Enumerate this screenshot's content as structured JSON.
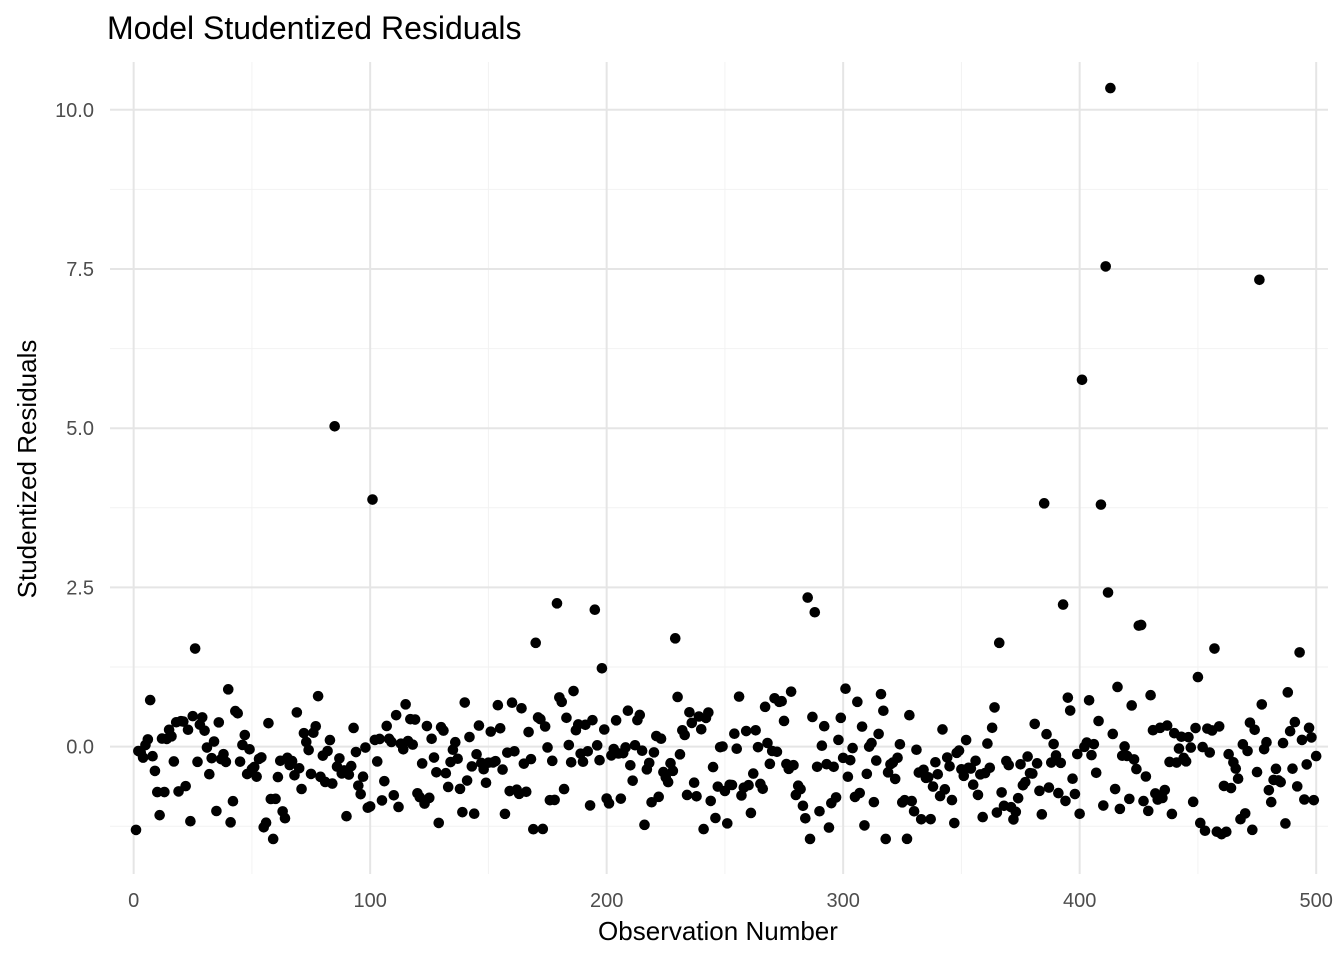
{
  "chart_data": {
    "type": "scatter",
    "title": "Model Studentized Residuals",
    "xlabel": "Observation Number",
    "ylabel": "Studentized Residuals",
    "xlim": [
      -10,
      505
    ],
    "ylim": [
      -2.0,
      10.75
    ],
    "x_ticks": [
      0,
      100,
      200,
      300,
      400,
      500
    ],
    "x_tick_labels": [
      "0",
      "100",
      "200",
      "300",
      "400",
      "500"
    ],
    "y_ticks": [
      0.0,
      2.5,
      5.0,
      7.5,
      10.0
    ],
    "y_tick_labels": [
      "0.0",
      "2.5",
      "5.0",
      "7.5",
      "10.0"
    ],
    "grid": true,
    "point_color": "#000000",
    "outliers": [
      {
        "x": 26,
        "y": 1.54
      },
      {
        "x": 85,
        "y": 5.03
      },
      {
        "x": 101,
        "y": 3.88
      },
      {
        "x": 170,
        "y": 1.63
      },
      {
        "x": 179,
        "y": 2.25
      },
      {
        "x": 195,
        "y": 2.15
      },
      {
        "x": 229,
        "y": 1.7
      },
      {
        "x": 285,
        "y": 2.34
      },
      {
        "x": 288,
        "y": 2.11
      },
      {
        "x": 366,
        "y": 1.63
      },
      {
        "x": 385,
        "y": 3.82
      },
      {
        "x": 393,
        "y": 2.23
      },
      {
        "x": 401,
        "y": 5.76
      },
      {
        "x": 409,
        "y": 3.8
      },
      {
        "x": 411,
        "y": 7.54
      },
      {
        "x": 412,
        "y": 2.42
      },
      {
        "x": 413,
        "y": 10.34
      },
      {
        "x": 425,
        "y": 1.9
      },
      {
        "x": 426,
        "y": 1.91
      },
      {
        "x": 457,
        "y": 1.54
      },
      {
        "x": 476,
        "y": 7.33
      },
      {
        "x": 493,
        "y": 1.48
      }
    ],
    "bulk": {
      "n": 500,
      "x_range": [
        1,
        500
      ],
      "y_min": -1.45,
      "y_max": 1.35
    }
  }
}
